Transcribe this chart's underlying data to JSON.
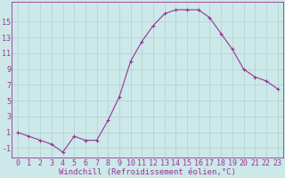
{
  "x": [
    0,
    1,
    2,
    3,
    4,
    5,
    6,
    7,
    8,
    9,
    10,
    11,
    12,
    13,
    14,
    15,
    16,
    17,
    18,
    19,
    20,
    21,
    22,
    23
  ],
  "y": [
    1,
    0.5,
    0.0,
    -0.5,
    -1.5,
    0.5,
    0.0,
    0.0,
    2.5,
    5.5,
    10.0,
    12.5,
    14.5,
    16.0,
    16.5,
    16.5,
    16.5,
    15.5,
    13.5,
    11.5,
    9.0,
    8.0,
    7.5,
    6.5
  ],
  "line_color": "#993399",
  "marker": "+",
  "marker_size": 3,
  "marker_lw": 0.8,
  "line_width": 0.8,
  "bg_color": "#cce8e8",
  "grid_color": "#b0d0d0",
  "xlabel": "Windchill (Refroidissement éolien,°C)",
  "xlabel_color": "#993399",
  "xlabel_fontsize": 6.5,
  "tick_color": "#993399",
  "tick_fontsize": 6,
  "ylim": [
    -2.2,
    17.5
  ],
  "yticks": [
    -1,
    1,
    3,
    5,
    7,
    9,
    11,
    13,
    15
  ],
  "xlim": [
    -0.5,
    23.5
  ],
  "xticks": [
    0,
    1,
    2,
    3,
    4,
    5,
    6,
    7,
    8,
    9,
    10,
    11,
    12,
    13,
    14,
    15,
    16,
    17,
    18,
    19,
    20,
    21,
    22,
    23
  ],
  "xtick_labels": [
    "0",
    "1",
    "2",
    "3",
    "4",
    "5",
    "6",
    "7",
    "8",
    "9",
    "10",
    "11",
    "12",
    "13",
    "14",
    "15",
    "16",
    "17",
    "18",
    "19",
    "20",
    "21",
    "22",
    "23"
  ],
  "spine_color": "#993399",
  "figw": 3.2,
  "figh": 2.0,
  "dpi": 100
}
